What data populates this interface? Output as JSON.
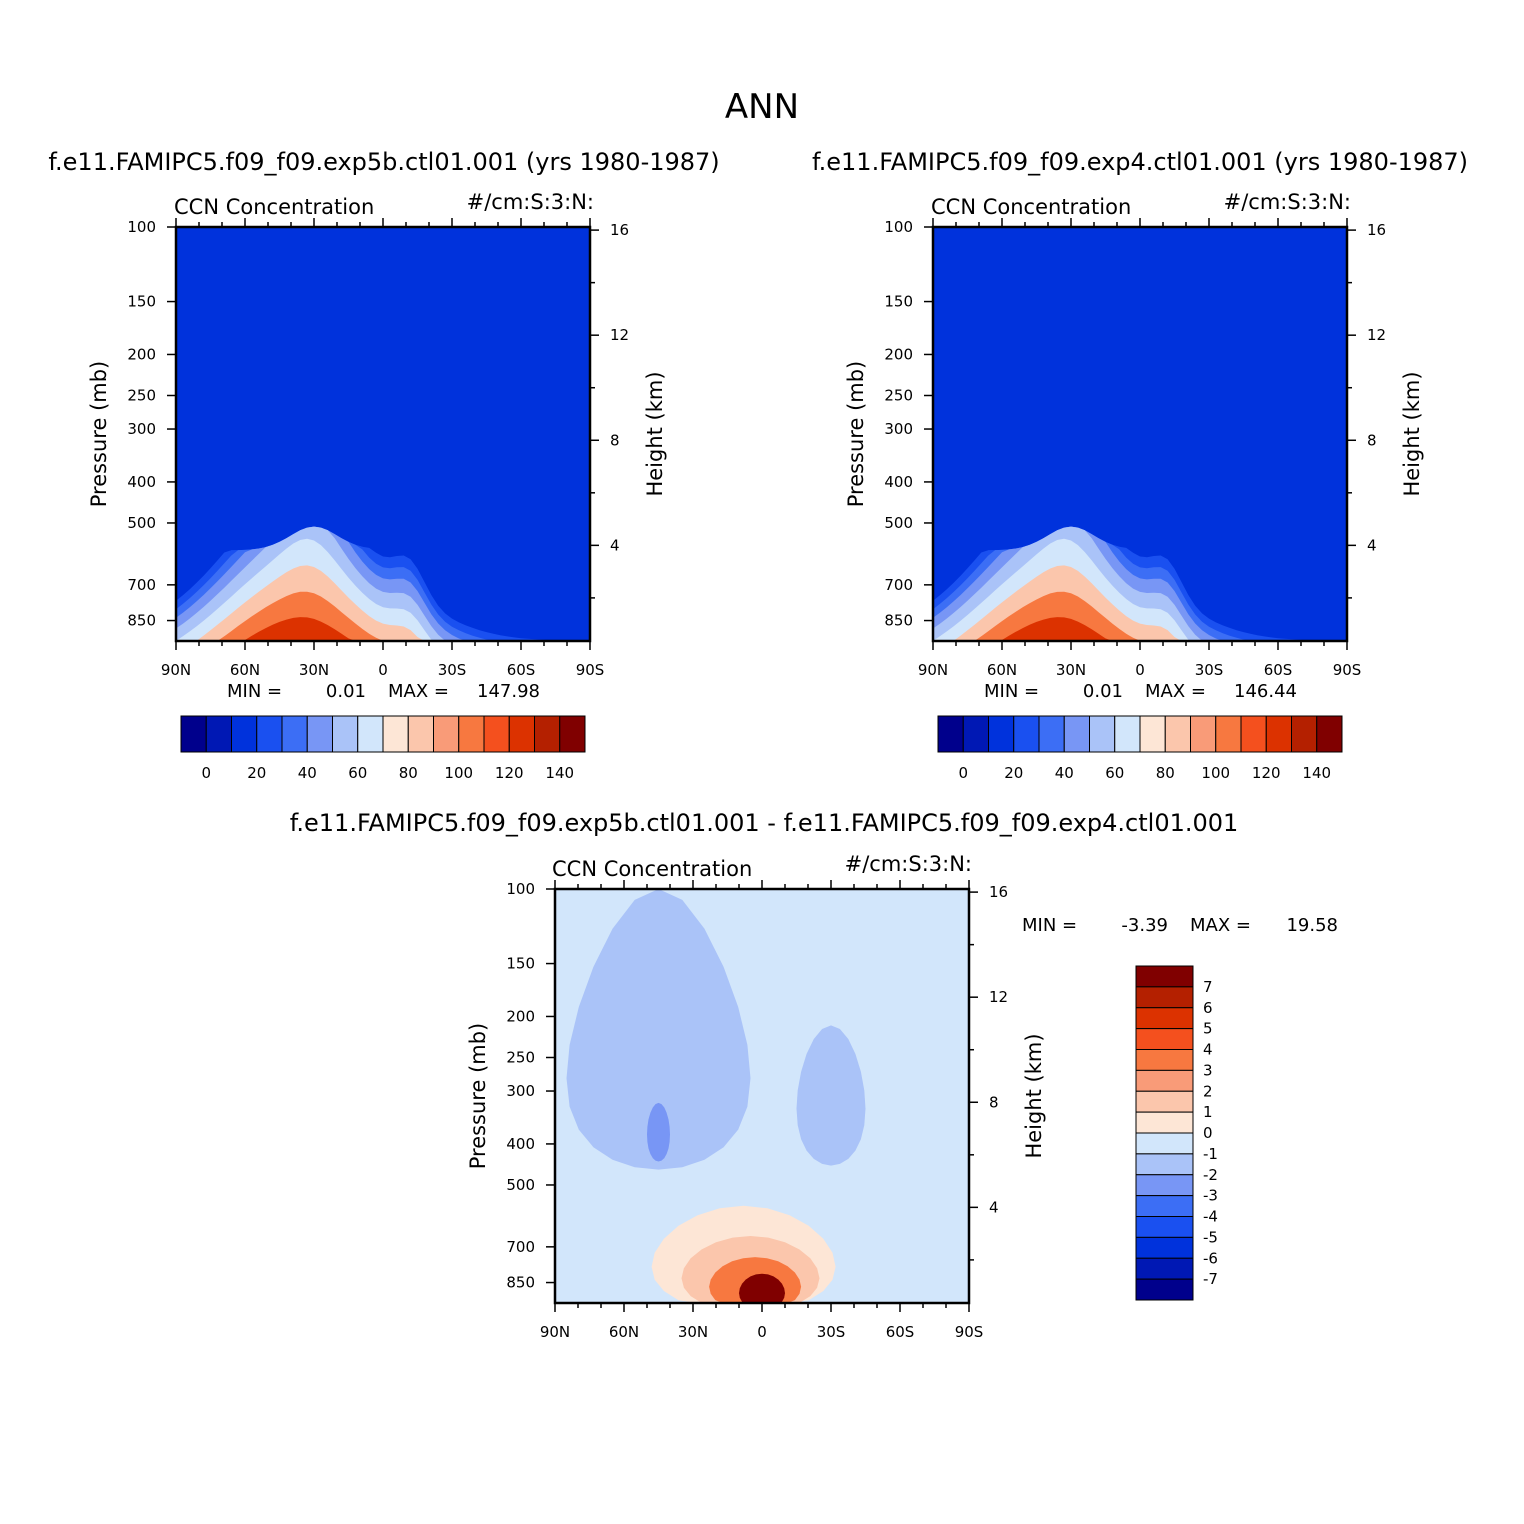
{
  "figure": {
    "title": "ANN"
  },
  "chart_data": [
    {
      "id": "p1",
      "type": "heatmap",
      "case_title": "f.e11.FAMIPC5.f09_f09.exp5b.ctl01.001 (yrs 1980-1987)",
      "left_title": "CCN Concentration",
      "right_title": "#/cm:S:3:N:",
      "ylabel": "Pressure (mb)",
      "ylabel_right": "Height (km)",
      "x_ticks": [
        "90N",
        "60N",
        "30N",
        "0",
        "30S",
        "60S",
        "90S"
      ],
      "x_values": [
        90,
        60,
        30,
        0,
        -30,
        -60,
        -90
      ],
      "y_ticks": [
        "100",
        "150",
        "200",
        "250",
        "300",
        "400",
        "500",
        "700",
        "850"
      ],
      "y_values": [
        100,
        150,
        200,
        250,
        300,
        400,
        500,
        700,
        850
      ],
      "ylim": [
        100,
        950
      ],
      "y_scale": "log",
      "height_ticks": [
        "16",
        "12",
        "8",
        "4"
      ],
      "height_values": [
        16,
        12,
        8,
        4
      ],
      "min_label": "MIN =",
      "min_value": "0.01",
      "max_label": "MAX =",
      "max_value": "147.98",
      "max_numeric": 147.98,
      "source_lat": 37,
      "colorbar": {
        "orientation": "horizontal",
        "levels": [
          0,
          10,
          20,
          30,
          40,
          50,
          60,
          70,
          80,
          90,
          100,
          110,
          120,
          130,
          140
        ],
        "tick_labels": [
          "0",
          "20",
          "40",
          "60",
          "80",
          "100",
          "120",
          "140"
        ]
      }
    },
    {
      "id": "p2",
      "type": "heatmap",
      "case_title": "f.e11.FAMIPC5.f09_f09.exp4.ctl01.001 (yrs 1980-1987)",
      "left_title": "CCN Concentration",
      "right_title": "#/cm:S:3:N:",
      "ylabel": "Pressure (mb)",
      "ylabel_right": "Height (km)",
      "x_ticks": [
        "90N",
        "60N",
        "30N",
        "0",
        "30S",
        "60S",
        "90S"
      ],
      "x_values": [
        90,
        60,
        30,
        0,
        -30,
        -60,
        -90
      ],
      "y_ticks": [
        "100",
        "150",
        "200",
        "250",
        "300",
        "400",
        "500",
        "700",
        "850"
      ],
      "y_values": [
        100,
        150,
        200,
        250,
        300,
        400,
        500,
        700,
        850
      ],
      "ylim": [
        100,
        950
      ],
      "y_scale": "log",
      "height_ticks": [
        "16",
        "12",
        "8",
        "4"
      ],
      "height_values": [
        16,
        12,
        8,
        4
      ],
      "min_label": "MIN =",
      "min_value": "0.01",
      "max_label": "MAX =",
      "max_value": "146.44",
      "max_numeric": 146.44,
      "source_lat": 37,
      "colorbar": {
        "orientation": "horizontal",
        "levels": [
          0,
          10,
          20,
          30,
          40,
          50,
          60,
          70,
          80,
          90,
          100,
          110,
          120,
          130,
          140
        ],
        "tick_labels": [
          "0",
          "20",
          "40",
          "60",
          "80",
          "100",
          "120",
          "140"
        ]
      }
    },
    {
      "id": "p3",
      "type": "heatmap",
      "case_title": "f.e11.FAMIPC5.f09_f09.exp5b.ctl01.001 - f.e11.FAMIPC5.f09_f09.exp4.ctl01.001",
      "left_title": "CCN Concentration",
      "right_title": "#/cm:S:3:N:",
      "ylabel": "Pressure (mb)",
      "ylabel_right": "Height (km)",
      "x_ticks": [
        "90N",
        "60N",
        "30N",
        "0",
        "30S",
        "60S",
        "90S"
      ],
      "x_values": [
        90,
        60,
        30,
        0,
        -30,
        -60,
        -90
      ],
      "y_ticks": [
        "100",
        "150",
        "200",
        "250",
        "300",
        "400",
        "500",
        "700",
        "850"
      ],
      "y_values": [
        100,
        150,
        200,
        250,
        300,
        400,
        500,
        700,
        850
      ],
      "ylim": [
        100,
        950
      ],
      "y_scale": "log",
      "height_ticks": [
        "16",
        "12",
        "8",
        "4"
      ],
      "height_values": [
        16,
        12,
        8,
        4
      ],
      "min_label": "MIN =",
      "min_value": "-3.39",
      "max_label": "MAX =",
      "max_value": "19.58",
      "colorbar": {
        "orientation": "vertical",
        "levels": [
          7,
          6,
          5,
          4,
          3,
          2,
          1,
          0,
          -1,
          -2,
          -3,
          -4,
          -5,
          -6,
          -7
        ],
        "tick_labels": [
          "7",
          "6",
          "5",
          "4",
          "3",
          "2",
          "1",
          "0",
          "-1",
          "-2",
          "-3",
          "-4",
          "-5",
          "-6",
          "-7"
        ]
      }
    }
  ],
  "colors": {
    "palette": [
      "#00008c",
      "#0018b4",
      "#0032dc",
      "#1a50f0",
      "#3c6ef5",
      "#7896f5",
      "#aac3f8",
      "#d2e6fb",
      "#fde6d6",
      "#fbc6ac",
      "#f99b78",
      "#f77840",
      "#f4501e",
      "#dc3200",
      "#b42000",
      "#800000"
    ]
  }
}
